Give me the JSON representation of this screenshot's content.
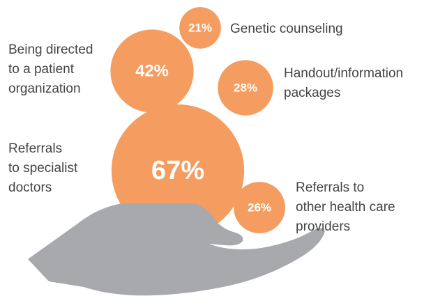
{
  "chart_data": {
    "type": "bubble",
    "categories": [
      "Genetic counseling",
      "Being directed\nto a patient\norganization",
      "Handout/information\npackages",
      "Referrals\nto specialist\ndoctors",
      "Referrals to\nother health care\nproviders"
    ],
    "values": [
      21,
      42,
      28,
      67,
      26
    ],
    "value_labels": [
      "21%",
      "42%",
      "28%",
      "67%",
      "26%"
    ],
    "color": "#f59d60"
  }
}
